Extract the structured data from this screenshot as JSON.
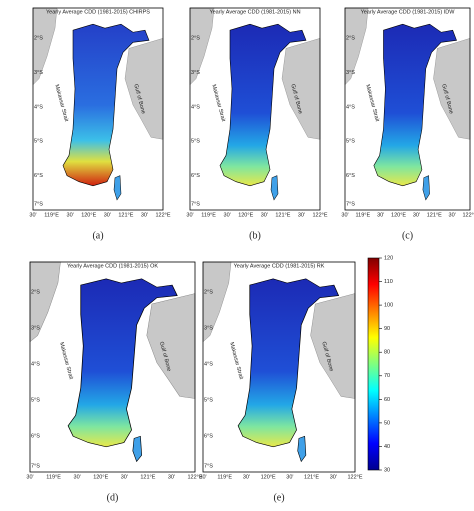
{
  "panels": [
    {
      "title": "Yearly Average CDD (1981-2015) CHIRPS",
      "label": "(a)"
    },
    {
      "title": "Yearly Average CDD (1981-2015) NN",
      "label": "(b)"
    },
    {
      "title": "Yearly Average CDD (1981-2015) IDW",
      "label": "(c)"
    },
    {
      "title": "Yearly Average CDD (1981-2015) OK",
      "label": "(d)"
    },
    {
      "title": "Yearly Average CDD (1981-2015) RK",
      "label": "(e)"
    }
  ],
  "map_axes": {
    "x_ticks": [
      "30'",
      "119°E",
      "30'",
      "120°E",
      "30'",
      "121°E",
      "30'",
      "122°E"
    ],
    "y_ticks": [
      "2°S",
      "3°S",
      "4°S",
      "5°S",
      "6°S",
      "7°S"
    ]
  },
  "annotations": [
    "Makassar Strait",
    "Gulf of Bone"
  ],
  "colorbar": {
    "range": [
      30,
      120
    ],
    "ticks": [
      30,
      40,
      50,
      60,
      70,
      80,
      90,
      100,
      110,
      120
    ]
  }
}
